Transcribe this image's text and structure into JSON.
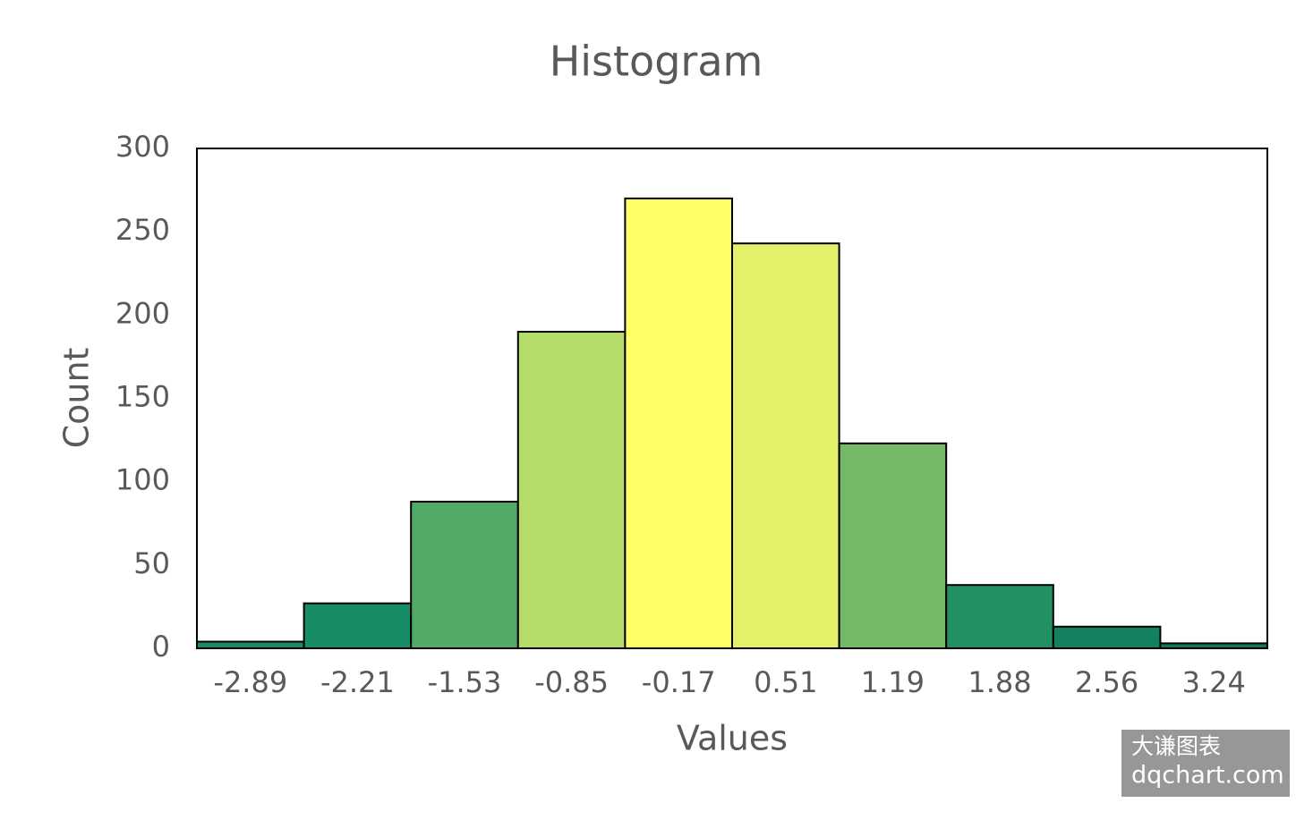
{
  "chart_data": {
    "type": "bar",
    "title": "Histogram",
    "x_label": "Values",
    "y_label": "Count",
    "categories": [
      "-2.89",
      "-2.21",
      "-1.53",
      "-0.85",
      "-0.17",
      "0.51",
      "1.19",
      "1.88",
      "2.56",
      "3.24"
    ],
    "values": [
      4,
      27,
      88,
      190,
      270,
      243,
      123,
      38,
      13,
      3
    ],
    "colors": [
      "#178c66",
      "#178c66",
      "#52aa66",
      "#b5dc68",
      "#ffff66",
      "#e4f06a",
      "#75b966",
      "#219164",
      "#138060",
      "#10765c"
    ],
    "ylim": [
      0,
      300
    ],
    "yticks": [
      0,
      50,
      100,
      150,
      200,
      250,
      300
    ],
    "grid": false,
    "watermark": [
      "大谦图表",
      "dqchart.com"
    ]
  }
}
